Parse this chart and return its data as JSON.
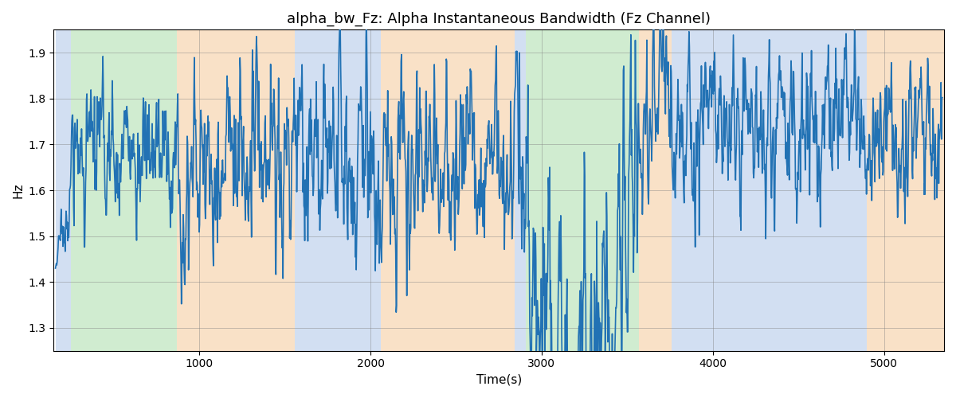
{
  "title": "alpha_bw_Fz: Alpha Instantaneous Bandwidth (Fz Channel)",
  "xlabel": "Time(s)",
  "ylabel": "Hz",
  "xlim": [
    150,
    5350
  ],
  "ylim": [
    1.25,
    1.95
  ],
  "yticks": [
    1.3,
    1.4,
    1.5,
    1.6,
    1.7,
    1.8,
    1.9
  ],
  "xticks": [
    1000,
    2000,
    3000,
    4000,
    5000
  ],
  "line_color": "#2272b4",
  "line_width": 1.2,
  "regions": [
    {
      "start": 160,
      "end": 250,
      "color": "#aec6e8",
      "alpha": 0.55
    },
    {
      "start": 250,
      "end": 870,
      "color": "#98d698",
      "alpha": 0.45
    },
    {
      "start": 870,
      "end": 1560,
      "color": "#f5c99a",
      "alpha": 0.55
    },
    {
      "start": 1560,
      "end": 2060,
      "color": "#aec6e8",
      "alpha": 0.55
    },
    {
      "start": 2060,
      "end": 2840,
      "color": "#f5c99a",
      "alpha": 0.55
    },
    {
      "start": 2840,
      "end": 2905,
      "color": "#aec6e8",
      "alpha": 0.55
    },
    {
      "start": 2905,
      "end": 3570,
      "color": "#98d698",
      "alpha": 0.45
    },
    {
      "start": 3570,
      "end": 3760,
      "color": "#f5c99a",
      "alpha": 0.55
    },
    {
      "start": 3760,
      "end": 4900,
      "color": "#aec6e8",
      "alpha": 0.55
    },
    {
      "start": 4900,
      "end": 5350,
      "color": "#f5c99a",
      "alpha": 0.55
    }
  ]
}
